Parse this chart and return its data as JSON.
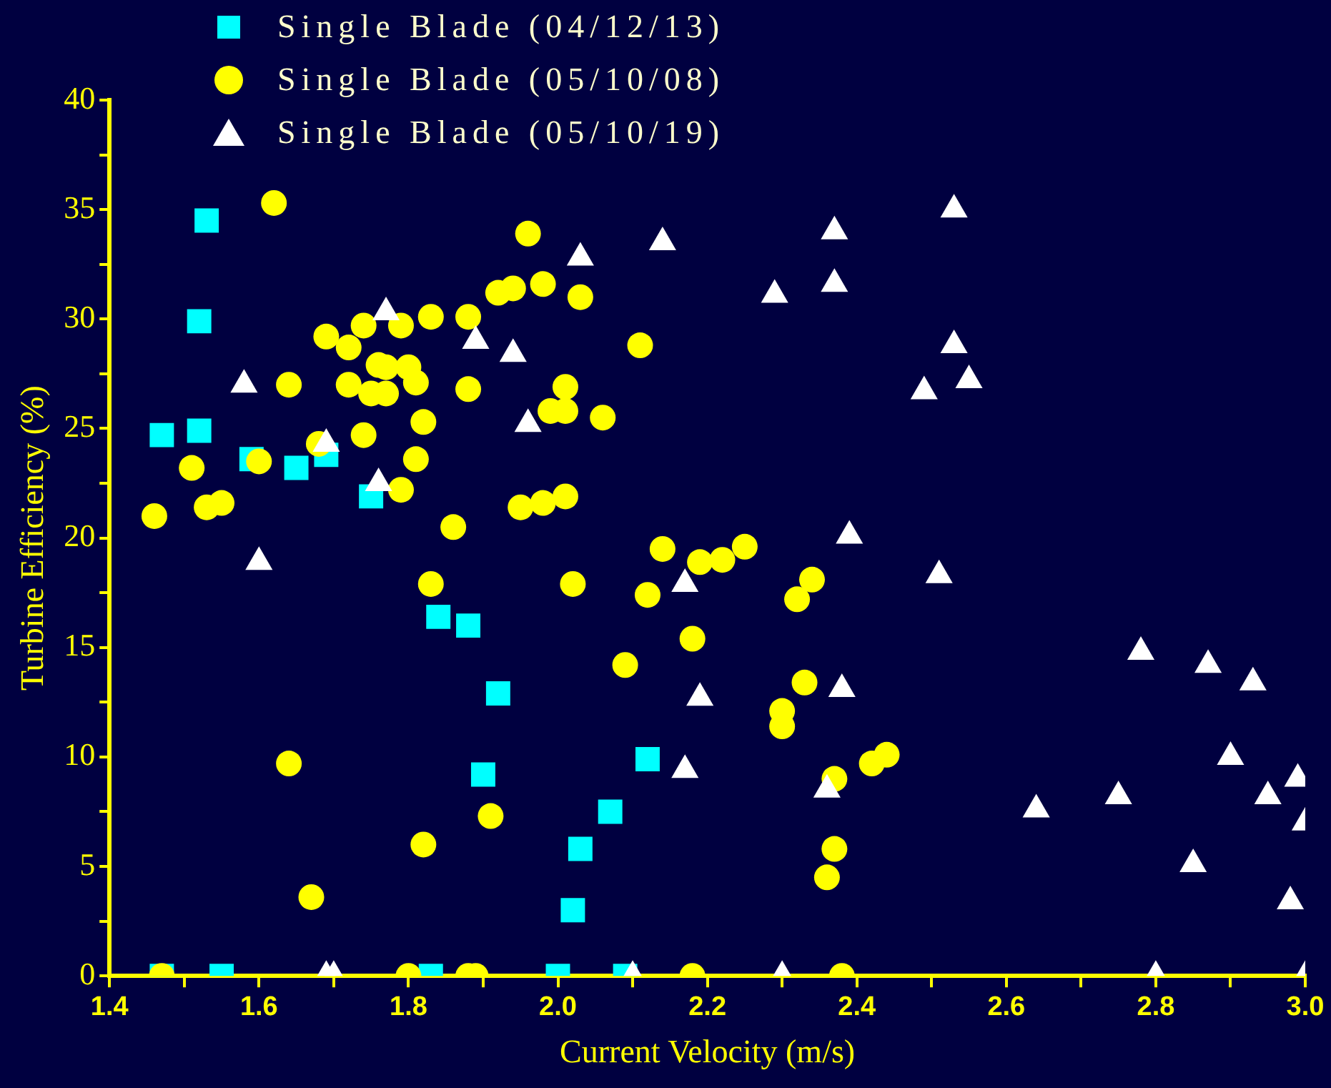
{
  "chart_data": {
    "type": "scatter",
    "xlabel": "Current Velocity (m/s)",
    "ylabel": "Turbine Efficiency (%)",
    "xlim": [
      1.4,
      3.0
    ],
    "ylim": [
      0,
      40
    ],
    "xticks": [
      1.4,
      {
        "value": 1.5,
        "label": null
      },
      1.6,
      {
        "value": 1.7,
        "label": null
      },
      1.8,
      {
        "value": 1.9,
        "label": null
      },
      {
        "value": 2.0,
        "label": "2.0"
      },
      {
        "value": 2.1,
        "label": null
      },
      2.2,
      {
        "value": 2.3,
        "label": null
      },
      2.4,
      {
        "value": 2.5,
        "label": null
      },
      2.6,
      {
        "value": 2.7,
        "label": null
      },
      2.8,
      {
        "value": 2.9,
        "label": null
      },
      {
        "value": 3.0,
        "label": "3.0"
      }
    ],
    "yticks": [
      0,
      {
        "value": 2.5,
        "label": null
      },
      5,
      {
        "value": 7.5,
        "label": null
      },
      10,
      {
        "value": 12.5,
        "label": null
      },
      15,
      {
        "value": 17.5,
        "label": null
      },
      20,
      {
        "value": 22.5,
        "label": null
      },
      25,
      {
        "value": 27.5,
        "label": null
      },
      30,
      {
        "value": 32.5,
        "label": null
      },
      35,
      {
        "value": 37.5,
        "label": null
      },
      40
    ],
    "grid": false,
    "legend": "top left",
    "series": [
      {
        "name": "Single Blade (04/12/13)",
        "color": "#00ffff",
        "marker": "square",
        "x": [
          1.53,
          1.52,
          1.47,
          1.52,
          1.59,
          1.65,
          1.69,
          1.75,
          1.84,
          1.88,
          1.92,
          1.9,
          2.12,
          2.07,
          2.03,
          2.02,
          1.47,
          1.55,
          1.83,
          2.0,
          2.09
        ],
        "values": [
          34.5,
          29.9,
          24.7,
          24.9,
          23.6,
          23.2,
          23.8,
          21.9,
          16.4,
          16.0,
          12.9,
          9.2,
          9.9,
          7.5,
          5.8,
          3.0,
          0,
          0,
          0,
          0,
          0
        ]
      },
      {
        "name": "Single Blade (05/10/08)",
        "color": "#ffff00",
        "marker": "circle",
        "x": [
          1.62,
          1.69,
          1.72,
          1.74,
          1.79,
          1.83,
          1.88,
          1.92,
          1.94,
          1.98,
          1.96,
          2.03,
          2.11,
          1.64,
          1.72,
          1.76,
          1.77,
          1.8,
          1.81,
          1.75,
          1.77,
          1.88,
          2.01,
          1.99,
          2.01,
          2.06,
          1.82,
          1.74,
          1.81,
          1.68,
          1.6,
          1.51,
          1.53,
          1.55,
          1.46,
          1.79,
          1.86,
          1.95,
          1.98,
          2.01,
          2.14,
          2.19,
          2.22,
          2.25,
          2.34,
          1.83,
          2.02,
          2.12,
          2.32,
          2.18,
          2.09,
          2.33,
          2.3,
          2.3,
          2.37,
          2.42,
          2.44,
          2.37,
          2.36,
          1.64,
          1.91,
          1.82,
          1.67,
          1.47,
          1.8,
          1.88,
          1.89,
          2.18,
          2.38
        ],
        "values": [
          35.3,
          29.2,
          28.7,
          29.7,
          29.7,
          30.1,
          30.1,
          31.2,
          31.4,
          31.6,
          33.9,
          31.0,
          28.8,
          27.0,
          27.0,
          27.9,
          27.8,
          27.8,
          27.1,
          26.6,
          26.6,
          26.8,
          26.9,
          25.8,
          25.8,
          25.5,
          25.3,
          24.7,
          23.6,
          24.3,
          23.5,
          23.2,
          21.4,
          21.6,
          21.0,
          22.2,
          20.5,
          21.4,
          21.6,
          21.9,
          19.5,
          18.9,
          19.0,
          19.6,
          18.1,
          17.9,
          17.9,
          17.4,
          17.2,
          15.4,
          14.2,
          13.4,
          12.1,
          11.4,
          9.0,
          9.7,
          10.1,
          5.8,
          4.5,
          9.7,
          7.3,
          6.0,
          3.6,
          0,
          0,
          0,
          0,
          0,
          0
        ]
      },
      {
        "name": "Single Blade (05/10/19)",
        "color": "#ffffff",
        "marker": "triangle",
        "x": [
          1.58,
          1.77,
          1.89,
          1.94,
          2.03,
          2.14,
          1.96,
          1.69,
          1.76,
          1.6,
          2.37,
          2.53,
          2.37,
          2.29,
          2.53,
          2.55,
          2.49,
          2.39,
          2.51,
          2.17,
          2.19,
          2.38,
          2.17,
          2.36,
          2.64,
          2.75,
          2.78,
          2.87,
          2.93,
          2.9,
          2.99,
          2.95,
          2.85,
          2.98,
          3.0,
          1.69,
          1.7,
          2.1,
          2.3,
          2.8,
          3.0
        ],
        "values": [
          27.0,
          30.3,
          29.0,
          28.4,
          32.8,
          33.5,
          25.2,
          24.3,
          22.5,
          18.9,
          34.0,
          35.0,
          31.6,
          31.1,
          28.8,
          27.2,
          26.7,
          20.1,
          18.3,
          17.9,
          12.7,
          13.1,
          9.4,
          8.5,
          7.6,
          8.2,
          14.8,
          14.2,
          13.4,
          10.0,
          9.0,
          8.2,
          5.1,
          3.4,
          7.0,
          0,
          0,
          0,
          0,
          0,
          0
        ]
      }
    ]
  }
}
